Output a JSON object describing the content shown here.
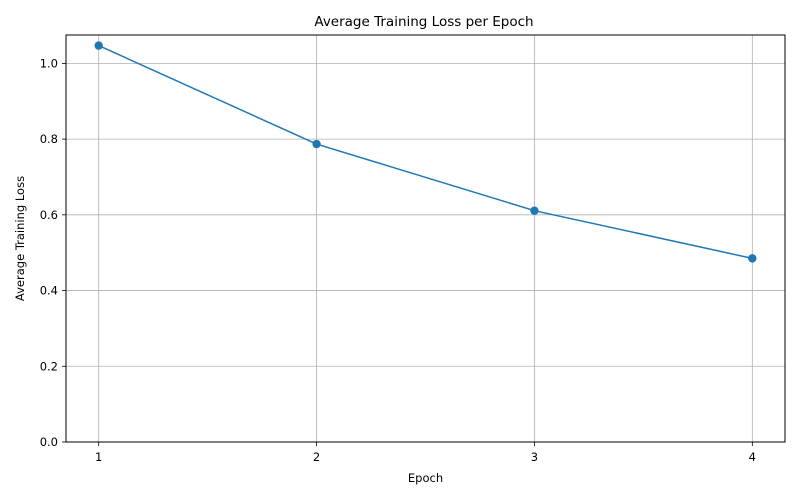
{
  "chart_data": {
    "type": "line",
    "title": "Average Training Loss per Epoch",
    "xlabel": "Epoch",
    "ylabel": "Average Training Loss",
    "x": [
      1,
      2,
      3,
      4
    ],
    "series": [
      {
        "values": [
          1.047,
          0.787,
          0.611,
          0.485
        ]
      }
    ],
    "xticks": [
      "1",
      "2",
      "3",
      "4"
    ],
    "yticks": [
      "0.0",
      "0.2",
      "0.4",
      "0.6",
      "0.8",
      "1.0"
    ],
    "ylim": [
      0,
      1.075
    ],
    "xlim": [
      0.85,
      4.15
    ],
    "grid": true,
    "marker": "circle",
    "color": "#1f77b4"
  }
}
